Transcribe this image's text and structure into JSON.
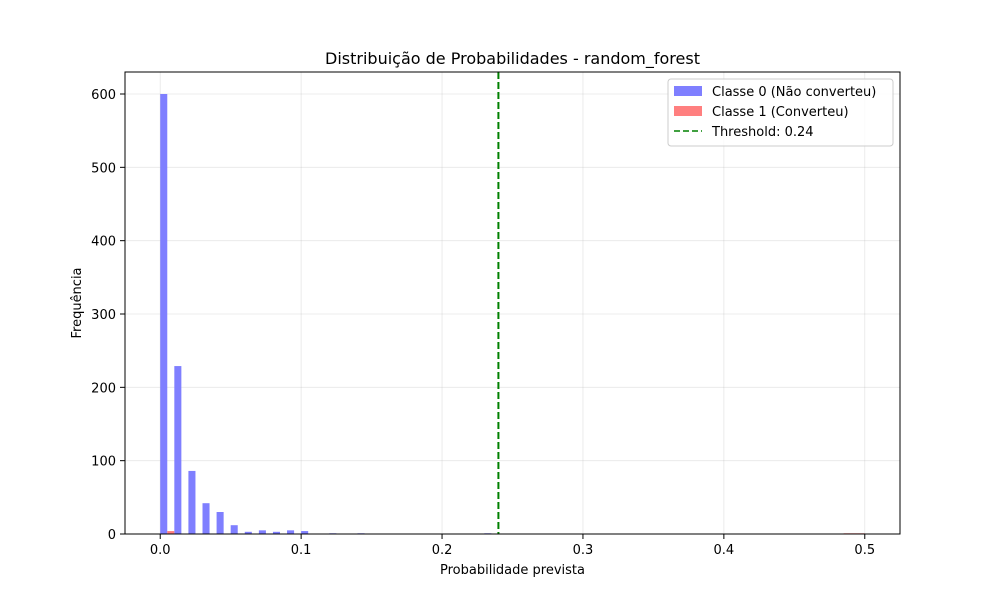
{
  "chart_data": {
    "type": "bar",
    "title": "Distribuição de Probabilidades - random_forest",
    "xlabel": "Probabilidade prevista",
    "ylabel": "Frequência",
    "xlim": [
      -0.025,
      0.525
    ],
    "ylim": [
      0,
      630
    ],
    "xticks": [
      0.0,
      0.1,
      0.2,
      0.3,
      0.4,
      0.5
    ],
    "xtick_labels": [
      "0.0",
      "0.1",
      "0.2",
      "0.3",
      "0.4",
      "0.5"
    ],
    "yticks": [
      0,
      100,
      200,
      300,
      400,
      500,
      600
    ],
    "ytick_labels": [
      "0",
      "100",
      "200",
      "300",
      "400",
      "500",
      "600"
    ],
    "grid": true,
    "legend_position": "top-right",
    "bin_width": 0.005,
    "series": [
      {
        "name": "Classe 0 (Não converteu)",
        "color": "#7f7fff",
        "points": [
          {
            "x": 0.0,
            "y": 600
          },
          {
            "x": 0.01,
            "y": 229
          },
          {
            "x": 0.02,
            "y": 86
          },
          {
            "x": 0.03,
            "y": 42
          },
          {
            "x": 0.04,
            "y": 30
          },
          {
            "x": 0.05,
            "y": 12
          },
          {
            "x": 0.06,
            "y": 3
          },
          {
            "x": 0.07,
            "y": 5
          },
          {
            "x": 0.08,
            "y": 3
          },
          {
            "x": 0.09,
            "y": 5
          },
          {
            "x": 0.1,
            "y": 4
          },
          {
            "x": 0.12,
            "y": 1
          },
          {
            "x": 0.14,
            "y": 1
          },
          {
            "x": 0.23,
            "y": 1
          }
        ]
      },
      {
        "name": "Classe 1 (Converteu)",
        "color": "#ff7f7f",
        "points": [
          {
            "x": 0.005,
            "y": 4
          },
          {
            "x": 0.485,
            "y": 1
          },
          {
            "x": 0.49,
            "y": 1
          },
          {
            "x": 0.495,
            "y": 1
          }
        ]
      }
    ],
    "threshold": {
      "name": "Threshold: 0.24",
      "value": 0.24,
      "color": "#008000",
      "style": "dashed"
    }
  }
}
